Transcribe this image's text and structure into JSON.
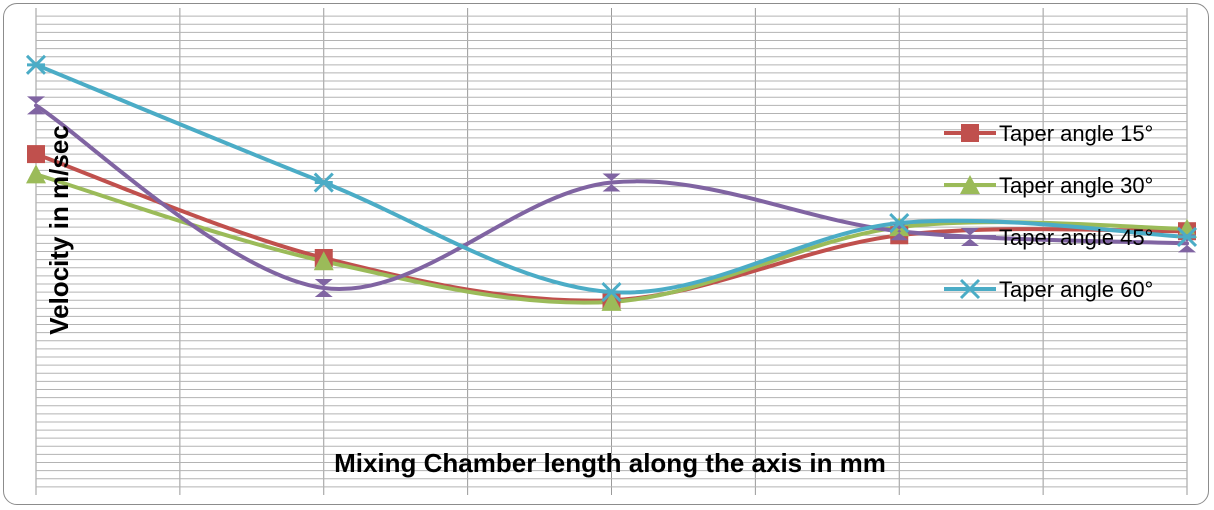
{
  "chart_data": {
    "type": "line",
    "title": "",
    "xlabel": "Mixing Chamber length along the axis in mm",
    "ylabel": "Velocity in m/sec",
    "categories": [
      "",
      "",
      "",
      "",
      ""
    ],
    "ylim": [
      0,
      60
    ],
    "grid": true,
    "smooth": true,
    "legend_position": "right",
    "series": [
      {
        "name": "Taper angle 15°",
        "color": "#c0504d",
        "marker": "square",
        "values": [
          42,
          29.2,
          24,
          32,
          32.5
        ]
      },
      {
        "name": "Taper angle 30°",
        "color": "#9bbb59",
        "marker": "triangle",
        "values": [
          39.5,
          28.8,
          23.8,
          33,
          32.8
        ]
      },
      {
        "name": "Taper angle 45°",
        "color": "#8064a2",
        "marker": "hourglass",
        "values": [
          48,
          25.5,
          38.5,
          32.5,
          31
        ]
      },
      {
        "name": "Taper angle 60°",
        "color": "#4bacc6",
        "marker": "star",
        "values": [
          53,
          38.5,
          25,
          33.5,
          31.8
        ]
      }
    ]
  }
}
